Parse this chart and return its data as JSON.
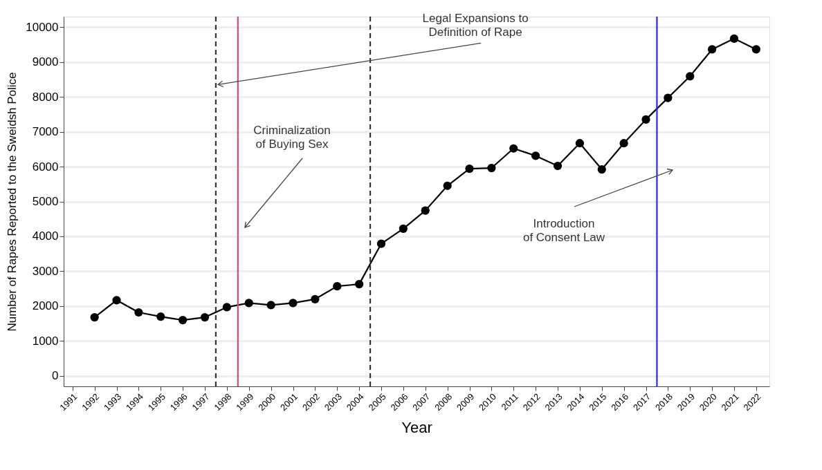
{
  "chart_data": {
    "type": "line",
    "xlabel": "Year",
    "ylabel": "Number of Rapes Reported to the Sweidsh Police",
    "x": [
      1992,
      1993,
      1994,
      1995,
      1996,
      1997,
      1998,
      1999,
      2000,
      2001,
      2002,
      2003,
      2004,
      2005,
      2006,
      2007,
      2008,
      2009,
      2010,
      2011,
      2012,
      2013,
      2014,
      2015,
      2016,
      2017,
      2018,
      2019,
      2020,
      2021,
      2022
    ],
    "series": [
      {
        "color": "#000000",
        "values": [
          1680,
          2170,
          1820,
          1700,
          1600,
          1680,
          1970,
          2090,
          2030,
          2090,
          2200,
          2570,
          2630,
          3790,
          4220,
          4740,
          5450,
          5940,
          5960,
          6520,
          6310,
          6020,
          6670,
          5920,
          6670,
          7350,
          7970,
          8590,
          9360,
          9670,
          9360
        ]
      }
    ],
    "xlim": [
      1990.6,
      2022.6
    ],
    "xticks": [
      1991,
      1992,
      1993,
      1994,
      1995,
      1996,
      1997,
      1998,
      1999,
      2000,
      2001,
      2002,
      2003,
      2004,
      2005,
      2006,
      2007,
      2008,
      2009,
      2010,
      2011,
      2012,
      2013,
      2014,
      2015,
      2016,
      2017,
      2018,
      2019,
      2020,
      2021,
      2022
    ],
    "ylim": [
      -300,
      10300
    ],
    "yticks": [
      0,
      1000,
      2000,
      3000,
      4000,
      5000,
      6000,
      7000,
      8000,
      9000,
      10000
    ],
    "grid": "y",
    "marker": "circle",
    "line_style": "solid",
    "ref_lines": [
      {
        "axis": "x",
        "value": 1997.5,
        "color": "#333333",
        "line_style": "dashed"
      },
      {
        "axis": "x",
        "value": 1998.5,
        "color": "#c8506e",
        "line_style": "solid"
      },
      {
        "axis": "x",
        "value": 2004.5,
        "color": "#333333",
        "line_style": "dashed"
      },
      {
        "axis": "x",
        "value": 2017.5,
        "color": "#2a2ae0",
        "line_style": "solid"
      }
    ],
    "annotations": [
      {
        "text": "Legal Expansions to Definition of Rape",
        "x": 1997.6,
        "y": 8350
      },
      "Criminalization of Buying Sex",
      "Introduction of Consent Law"
    ]
  }
}
